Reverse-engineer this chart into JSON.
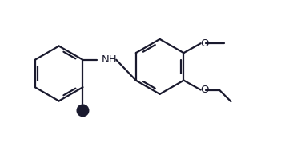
{
  "bg_color": "#ffffff",
  "line_color": "#1a1a2e",
  "bond_width": 1.6,
  "font_size": 9.5,
  "fig_width": 3.66,
  "fig_height": 1.84,
  "dpi": 100,
  "xlim": [
    0.0,
    5.5
  ],
  "ylim": [
    -0.3,
    2.4
  ]
}
